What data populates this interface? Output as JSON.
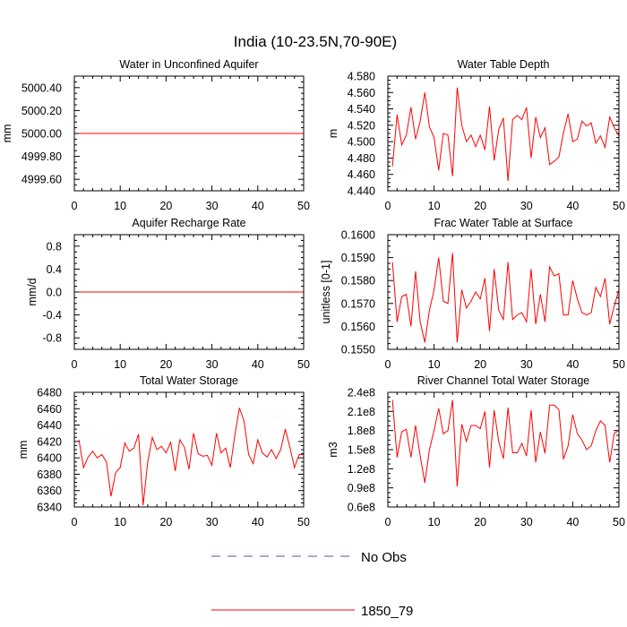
{
  "figure": {
    "title": "India (10-23.5N,70-90E)",
    "legend": [
      {
        "label": "No Obs",
        "color": "#5555aa",
        "style": "dashed"
      },
      {
        "label": "1850_79",
        "color": "#ff0000",
        "style": "solid"
      }
    ]
  },
  "chart_data": [
    {
      "type": "line",
      "title": "Water in Unconfined Aquifer",
      "xlabel": "",
      "ylabel": "mm",
      "xlim": [
        0,
        50
      ],
      "ylim": [
        4999.5,
        5000.5
      ],
      "xticks": [
        0,
        10,
        20,
        30,
        40,
        50
      ],
      "yticks": [
        4999.6,
        4999.8,
        5000.0,
        5000.2,
        5000.4
      ],
      "ytick_labels": [
        "4999.60",
        "4999.80",
        "5000.00",
        "5000.20",
        "5000.40"
      ],
      "series": [
        {
          "name": "1850_79",
          "color": "#ff0000",
          "x": [
            1,
            50
          ],
          "values": [
            5000.0,
            5000.0
          ]
        }
      ]
    },
    {
      "type": "line",
      "title": "Water Table Depth",
      "xlabel": "",
      "ylabel": "m",
      "xlim": [
        0,
        50
      ],
      "ylim": [
        4.44,
        4.58
      ],
      "xticks": [
        0,
        10,
        20,
        30,
        40,
        50
      ],
      "yticks": [
        4.44,
        4.46,
        4.48,
        4.5,
        4.52,
        4.54,
        4.56,
        4.58
      ],
      "ytick_labels": [
        "4.440",
        "4.460",
        "4.480",
        "4.500",
        "4.520",
        "4.540",
        "4.560",
        "4.580"
      ],
      "series": [
        {
          "name": "1850_79",
          "color": "#ff0000",
          "x": [
            1,
            2,
            3,
            4,
            5,
            6,
            7,
            8,
            9,
            10,
            11,
            12,
            13,
            14,
            15,
            16,
            17,
            18,
            19,
            20,
            21,
            22,
            23,
            24,
            25,
            26,
            27,
            28,
            29,
            30,
            31,
            32,
            33,
            34,
            35,
            36,
            37,
            38,
            39,
            40,
            41,
            42,
            43,
            44,
            45,
            46,
            47,
            48,
            49,
            50
          ],
          "values": [
            4.47,
            4.533,
            4.496,
            4.508,
            4.542,
            4.503,
            4.525,
            4.56,
            4.518,
            4.505,
            4.465,
            4.51,
            4.508,
            4.458,
            4.566,
            4.52,
            4.5,
            4.508,
            4.494,
            4.508,
            4.49,
            4.543,
            4.477,
            4.515,
            4.529,
            4.452,
            4.527,
            4.532,
            4.527,
            4.542,
            4.48,
            4.53,
            4.505,
            4.517,
            4.472,
            4.476,
            4.481,
            4.511,
            4.534,
            4.5,
            4.503,
            4.525,
            4.519,
            4.523,
            4.498,
            4.507,
            4.493,
            4.53,
            4.517,
            4.507
          ]
        }
      ]
    },
    {
      "type": "line",
      "title": "Aquifer Recharge Rate",
      "xlabel": "",
      "ylabel": "mm/d",
      "xlim": [
        0,
        50
      ],
      "ylim": [
        -1.0,
        1.0
      ],
      "xticks": [
        0,
        10,
        20,
        30,
        40,
        50
      ],
      "yticks": [
        -0.8,
        -0.4,
        0.0,
        0.4,
        0.8
      ],
      "ytick_labels": [
        "-0.8",
        "-0.4",
        "0.0",
        "0.4",
        "0.8"
      ],
      "series": [
        {
          "name": "1850_79",
          "color": "#ff0000",
          "x": [
            1,
            50
          ],
          "values": [
            0.0,
            0.0
          ]
        }
      ]
    },
    {
      "type": "line",
      "title": "Frac Water Table at Surface",
      "xlabel": "",
      "ylabel": "unitless [0-1]",
      "xlim": [
        0,
        50
      ],
      "ylim": [
        0.155,
        0.16
      ],
      "xticks": [
        0,
        10,
        20,
        30,
        40,
        50
      ],
      "yticks": [
        0.155,
        0.156,
        0.157,
        0.158,
        0.159,
        0.16
      ],
      "ytick_labels": [
        "0.1550",
        "0.1560",
        "0.1570",
        "0.1580",
        "0.1590",
        "0.1600"
      ],
      "series": [
        {
          "name": "1850_79",
          "color": "#ff0000",
          "x": [
            1,
            2,
            3,
            4,
            5,
            6,
            7,
            8,
            9,
            10,
            11,
            12,
            13,
            14,
            15,
            16,
            17,
            18,
            19,
            20,
            21,
            22,
            23,
            24,
            25,
            26,
            27,
            28,
            29,
            30,
            31,
            32,
            33,
            34,
            35,
            36,
            37,
            38,
            39,
            40,
            41,
            42,
            43,
            44,
            45,
            46,
            47,
            48,
            49,
            50
          ],
          "values": [
            0.1588,
            0.1562,
            0.1573,
            0.1574,
            0.156,
            0.1584,
            0.1562,
            0.1553,
            0.1567,
            0.1576,
            0.159,
            0.1571,
            0.157,
            0.1592,
            0.1553,
            0.1576,
            0.1568,
            0.1571,
            0.1575,
            0.1572,
            0.1581,
            0.1558,
            0.1585,
            0.1567,
            0.1563,
            0.1588,
            0.1563,
            0.1565,
            0.1566,
            0.1562,
            0.1585,
            0.1561,
            0.1574,
            0.1562,
            0.1586,
            0.1582,
            0.1583,
            0.1565,
            0.1565,
            0.158,
            0.1572,
            0.1566,
            0.1565,
            0.1566,
            0.1577,
            0.1573,
            0.1581,
            0.1561,
            0.1569,
            0.1576
          ]
        }
      ]
    },
    {
      "type": "line",
      "title": "Total Water Storage",
      "xlabel": "",
      "ylabel": "mm",
      "xlim": [
        0,
        50
      ],
      "ylim": [
        6340,
        6480
      ],
      "xticks": [
        0,
        10,
        20,
        30,
        40,
        50
      ],
      "yticks": [
        6340,
        6360,
        6380,
        6400,
        6420,
        6440,
        6460,
        6480
      ],
      "ytick_labels": [
        "6340",
        "6360",
        "6380",
        "6400",
        "6420",
        "6440",
        "6460",
        "6480"
      ],
      "series": [
        {
          "name": "1850_79",
          "color": "#ff0000",
          "x": [
            1,
            2,
            3,
            4,
            5,
            6,
            7,
            8,
            9,
            10,
            11,
            12,
            13,
            14,
            15,
            16,
            17,
            18,
            19,
            20,
            21,
            22,
            23,
            24,
            25,
            26,
            27,
            28,
            29,
            30,
            31,
            32,
            33,
            34,
            35,
            36,
            37,
            38,
            39,
            40,
            41,
            42,
            43,
            44,
            45,
            46,
            47,
            48,
            49,
            50
          ],
          "values": [
            6422,
            6388,
            6401,
            6408,
            6400,
            6404,
            6395,
            6353,
            6382,
            6388,
            6418,
            6408,
            6412,
            6429,
            6342,
            6395,
            6425,
            6410,
            6414,
            6406,
            6419,
            6384,
            6422,
            6413,
            6386,
            6430,
            6405,
            6402,
            6403,
            6391,
            6430,
            6406,
            6412,
            6388,
            6428,
            6461,
            6445,
            6404,
            6393,
            6422,
            6406,
            6401,
            6410,
            6399,
            6410,
            6435,
            6413,
            6388,
            6404,
            6404
          ]
        }
      ]
    },
    {
      "type": "line",
      "title": "River Channel Total Water Storage",
      "xlabel": "",
      "ylabel": "m3",
      "xlim": [
        0,
        50
      ],
      "ylim": [
        0.6,
        2.4
      ],
      "xticks": [
        0,
        10,
        20,
        30,
        40,
        50
      ],
      "yticks": [
        0.6,
        0.9,
        1.2,
        1.5,
        1.8,
        2.1,
        2.4
      ],
      "ytick_labels": [
        "0.6e8",
        "0.9e8",
        "1.2e8",
        "1.5e8",
        "1.8e8",
        "2.1e8",
        "2.4e8"
      ],
      "series": [
        {
          "name": "1850_79",
          "color": "#ff0000",
          "x": [
            1,
            2,
            3,
            4,
            5,
            6,
            7,
            8,
            9,
            10,
            11,
            12,
            13,
            14,
            15,
            16,
            17,
            18,
            19,
            20,
            21,
            22,
            23,
            24,
            25,
            26,
            27,
            28,
            29,
            30,
            31,
            32,
            33,
            34,
            35,
            36,
            37,
            38,
            39,
            40,
            41,
            42,
            43,
            44,
            45,
            46,
            47,
            48,
            49,
            50
          ],
          "values": [
            2.28,
            1.38,
            1.78,
            1.82,
            1.38,
            1.88,
            1.4,
            0.98,
            1.5,
            1.8,
            2.15,
            1.75,
            1.8,
            2.28,
            0.92,
            1.9,
            1.63,
            1.88,
            1.88,
            1.83,
            2.1,
            1.22,
            2.12,
            1.62,
            1.36,
            2.16,
            1.45,
            1.45,
            1.6,
            1.4,
            2.12,
            1.3,
            1.78,
            1.44,
            2.2,
            2.2,
            2.13,
            1.35,
            1.56,
            2.05,
            1.75,
            1.65,
            1.5,
            1.56,
            1.8,
            1.95,
            1.88,
            1.3,
            1.76,
            1.8
          ]
        }
      ]
    }
  ]
}
